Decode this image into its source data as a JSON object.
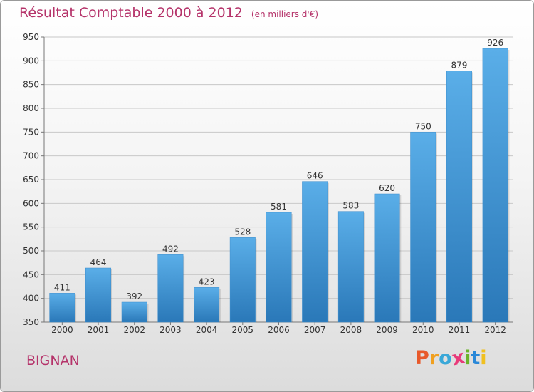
{
  "header": {
    "title": "Résultat Comptable 2000 à 2012",
    "subtitle": "(en milliers d'€)"
  },
  "footer": {
    "city": "BIGNAN",
    "logo_letters": [
      "P",
      "r",
      "o",
      "x",
      "i",
      "t",
      "i"
    ],
    "logo_colors": [
      "#e8592a",
      "#f0a020",
      "#3aa8d8",
      "#e83a7a",
      "#6ab42a",
      "#2a88d8",
      "#f0c020"
    ]
  },
  "chart_data": {
    "type": "bar",
    "title": "Résultat Comptable 2000 à 2012",
    "subtitle": "(en milliers d'€)",
    "xlabel": "",
    "ylabel": "",
    "categories": [
      "2000",
      "2001",
      "2002",
      "2003",
      "2004",
      "2005",
      "2006",
      "2007",
      "2008",
      "2009",
      "2010",
      "2011",
      "2012"
    ],
    "values": [
      411,
      464,
      392,
      492,
      423,
      528,
      581,
      646,
      583,
      620,
      750,
      879,
      926
    ],
    "value_labels": [
      "411",
      "464",
      "392",
      "492",
      "423",
      "528",
      "581",
      "646",
      "583",
      "620",
      "750",
      "879",
      "926"
    ],
    "ylim": [
      350,
      950
    ],
    "yticks": [
      350,
      400,
      450,
      500,
      550,
      600,
      650,
      700,
      750,
      800,
      850,
      900,
      950
    ],
    "ytick_labels": [
      "350",
      "400",
      "450",
      "500",
      "550",
      "600",
      "650",
      "700",
      "750",
      "800",
      "850",
      "900",
      "950"
    ],
    "grid": true,
    "bar_color_top": "#5aaee8",
    "bar_color_bottom": "#2a78b8"
  }
}
